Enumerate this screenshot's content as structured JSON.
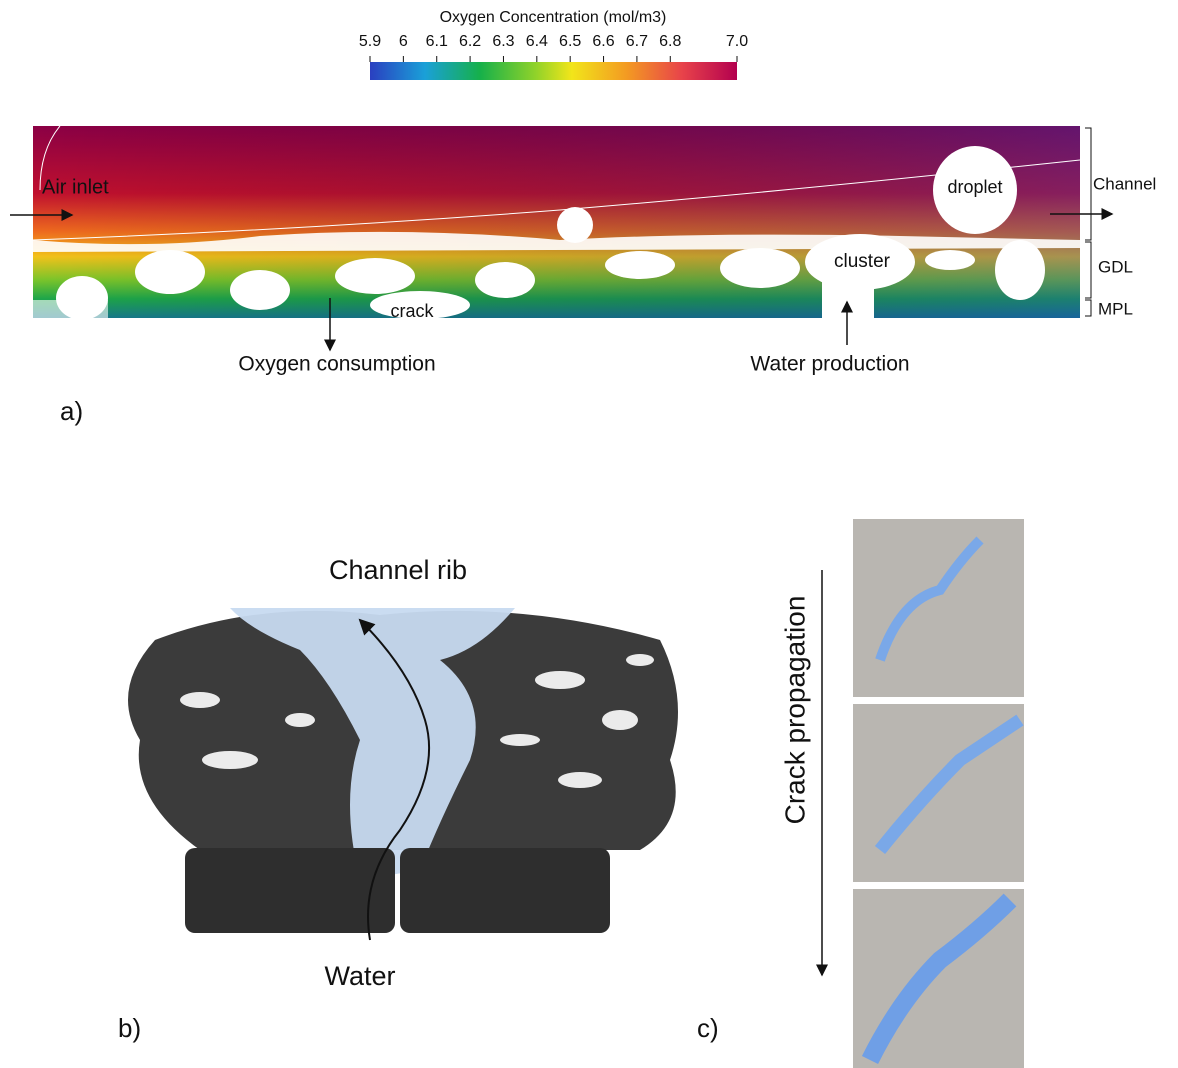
{
  "panel_a": {
    "colorbar": {
      "title": "Oxygen Concentration (mol/m3)",
      "range": [
        5.9,
        7.0
      ],
      "ticks": [
        5.9,
        6,
        6.1,
        6.2,
        6.3,
        6.4,
        6.5,
        6.6,
        6.7,
        6.8,
        {
          "value": 7,
          "label": "7.0"
        }
      ]
    },
    "labels": {
      "air_inlet": "Air inlet",
      "droplet": "droplet",
      "channel": "Channel",
      "gdl": "GDL",
      "mpl": "MPL",
      "cluster": "cluster",
      "crack": "crack",
      "oxygen_consumption": "Oxygen consumption",
      "water_production": "Water production"
    },
    "tag": "a)"
  },
  "panel_b": {
    "channel_rib": "Channel rib",
    "water": "Water",
    "tag": "b)"
  },
  "panel_c": {
    "crack_propagation": "Crack propagation",
    "tag": "c)"
  }
}
